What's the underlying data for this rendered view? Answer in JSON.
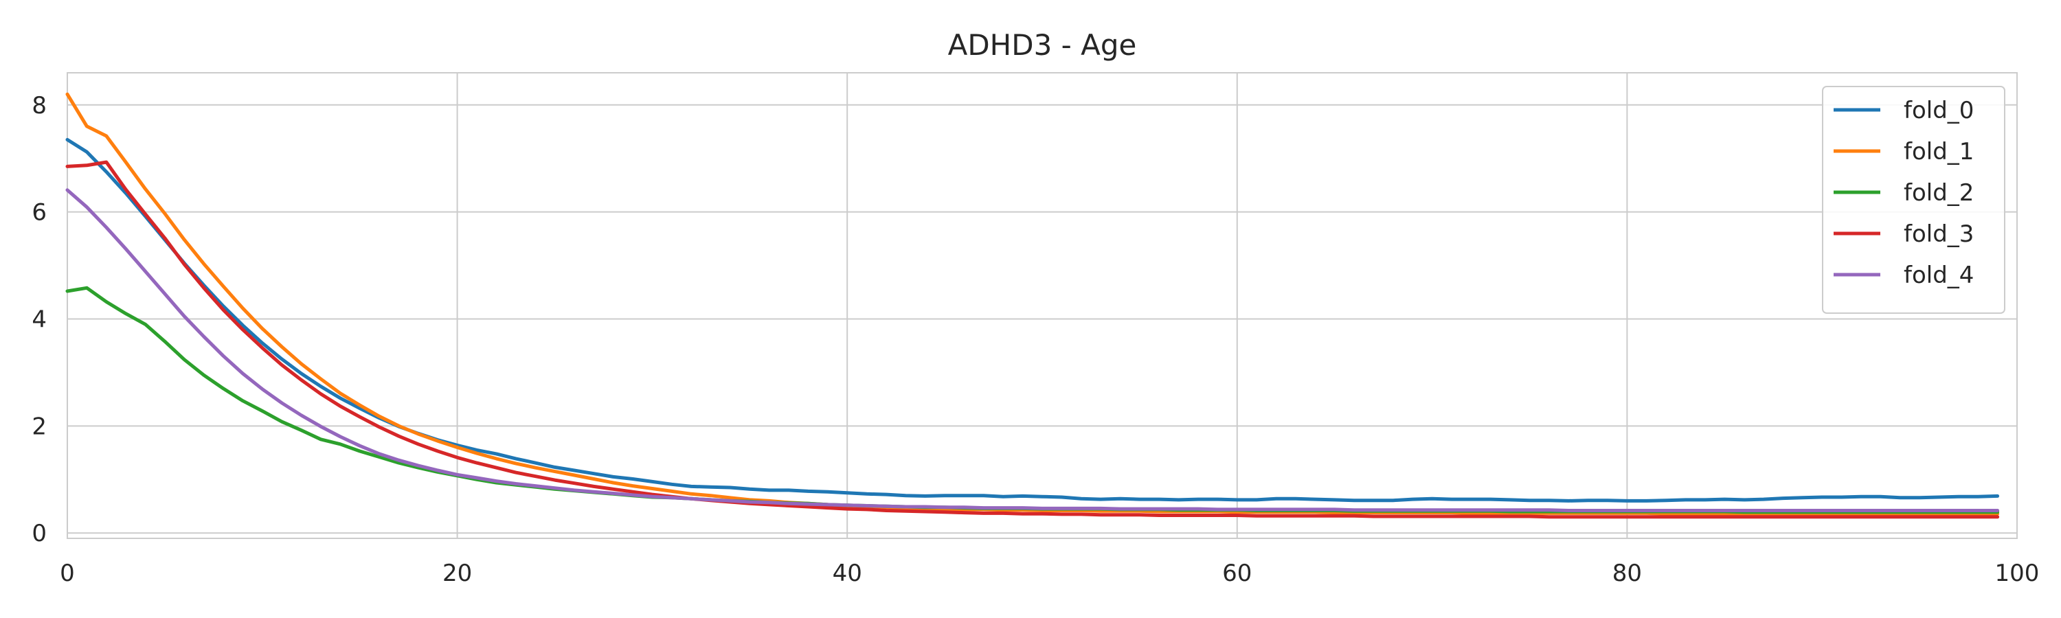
{
  "chart_data": {
    "type": "line",
    "title": "ADHD3 - Age",
    "xlabel": "",
    "ylabel": "",
    "xlim": [
      0,
      100
    ],
    "ylim": [
      -0.1,
      8.6
    ],
    "x_ticks": [
      0,
      20,
      40,
      60,
      80,
      100
    ],
    "y_ticks": [
      0,
      2,
      4,
      6,
      8
    ],
    "grid": true,
    "legend_position": "top-right",
    "colors": {
      "fold_0": "#1f77b4",
      "fold_1": "#ff7f0e",
      "fold_2": "#2ca02c",
      "fold_3": "#d62728",
      "fold_4": "#9467bd"
    },
    "series": [
      {
        "name": "fold_0",
        "x": [
          0,
          1,
          2,
          3,
          4,
          5,
          6,
          7,
          8,
          9,
          10,
          11,
          12,
          13,
          14,
          15,
          16,
          17,
          18,
          19,
          20,
          21,
          22,
          23,
          24,
          25,
          26,
          27,
          28,
          29,
          30,
          31,
          32,
          33,
          34,
          35,
          36,
          37,
          38,
          39,
          40,
          41,
          42,
          43,
          44,
          45,
          46,
          47,
          48,
          49,
          50,
          51,
          52,
          53,
          54,
          55,
          56,
          57,
          58,
          59,
          60,
          61,
          62,
          63,
          64,
          65,
          66,
          67,
          68,
          69,
          70,
          71,
          72,
          73,
          74,
          75,
          76,
          77,
          78,
          79,
          80,
          81,
          82,
          83,
          84,
          85,
          86,
          87,
          88,
          89,
          90,
          91,
          92,
          93,
          94,
          95,
          96,
          97,
          98,
          99
        ],
        "values": [
          7.35,
          7.12,
          6.75,
          6.35,
          5.92,
          5.48,
          5.04,
          4.63,
          4.24,
          3.88,
          3.55,
          3.25,
          2.98,
          2.74,
          2.52,
          2.33,
          2.15,
          1.99,
          1.86,
          1.74,
          1.64,
          1.55,
          1.48,
          1.39,
          1.31,
          1.23,
          1.17,
          1.11,
          1.05,
          1.01,
          0.96,
          0.91,
          0.87,
          0.86,
          0.85,
          0.82,
          0.8,
          0.8,
          0.78,
          0.77,
          0.75,
          0.73,
          0.72,
          0.7,
          0.69,
          0.7,
          0.7,
          0.7,
          0.68,
          0.69,
          0.68,
          0.67,
          0.64,
          0.63,
          0.64,
          0.63,
          0.63,
          0.62,
          0.63,
          0.63,
          0.62,
          0.62,
          0.64,
          0.64,
          0.63,
          0.62,
          0.61,
          0.61,
          0.61,
          0.63,
          0.64,
          0.63,
          0.63,
          0.63,
          0.62,
          0.61,
          0.61,
          0.6,
          0.61,
          0.61,
          0.6,
          0.6,
          0.61,
          0.62,
          0.62,
          0.63,
          0.62,
          0.63,
          0.65,
          0.66,
          0.67,
          0.67,
          0.68,
          0.68,
          0.66,
          0.66,
          0.67,
          0.68,
          0.68,
          0.69
        ]
      },
      {
        "name": "fold_1",
        "x": [
          0,
          1,
          2,
          3,
          4,
          5,
          6,
          7,
          8,
          9,
          10,
          11,
          12,
          13,
          14,
          15,
          16,
          17,
          18,
          19,
          20,
          21,
          22,
          23,
          24,
          25,
          26,
          27,
          28,
          29,
          30,
          31,
          32,
          33,
          34,
          35,
          36,
          37,
          38,
          39,
          40,
          41,
          42,
          43,
          44,
          45,
          46,
          47,
          48,
          49,
          50,
          51,
          52,
          53,
          54,
          55,
          56,
          57,
          58,
          59,
          60,
          61,
          62,
          63,
          64,
          65,
          66,
          67,
          68,
          69,
          70,
          71,
          72,
          73,
          74,
          75,
          76,
          77,
          78,
          79,
          80,
          81,
          82,
          83,
          84,
          85,
          86,
          87,
          88,
          89,
          90,
          91,
          92,
          93,
          94,
          95,
          96,
          97,
          98,
          99
        ],
        "values": [
          8.2,
          7.6,
          7.42,
          6.93,
          6.43,
          5.97,
          5.48,
          5.03,
          4.61,
          4.2,
          3.82,
          3.48,
          3.16,
          2.88,
          2.61,
          2.39,
          2.18,
          2.0,
          1.85,
          1.72,
          1.6,
          1.49,
          1.39,
          1.3,
          1.22,
          1.15,
          1.08,
          1.01,
          0.94,
          0.88,
          0.83,
          0.78,
          0.73,
          0.7,
          0.66,
          0.62,
          0.6,
          0.57,
          0.55,
          0.53,
          0.51,
          0.5,
          0.48,
          0.47,
          0.46,
          0.45,
          0.44,
          0.44,
          0.43,
          0.43,
          0.42,
          0.42,
          0.42,
          0.41,
          0.41,
          0.41,
          0.4,
          0.4,
          0.4,
          0.4,
          0.39,
          0.39,
          0.39,
          0.39,
          0.39,
          0.38,
          0.38,
          0.38,
          0.38,
          0.38,
          0.38,
          0.38,
          0.37,
          0.37,
          0.37,
          0.37,
          0.37,
          0.37,
          0.37,
          0.37,
          0.37,
          0.37,
          0.36,
          0.36,
          0.36,
          0.36,
          0.36,
          0.36,
          0.36,
          0.36,
          0.36,
          0.36,
          0.36,
          0.36,
          0.36,
          0.36,
          0.36,
          0.36,
          0.36,
          0.36
        ]
      },
      {
        "name": "fold_2",
        "x": [
          0,
          1,
          2,
          3,
          4,
          5,
          6,
          7,
          8,
          9,
          10,
          11,
          12,
          13,
          14,
          15,
          16,
          17,
          18,
          19,
          20,
          21,
          22,
          23,
          24,
          25,
          26,
          27,
          28,
          29,
          30,
          31,
          32,
          33,
          34,
          35,
          36,
          37,
          38,
          39,
          40,
          41,
          42,
          43,
          44,
          45,
          46,
          47,
          48,
          49,
          50,
          51,
          52,
          53,
          54,
          55,
          56,
          57,
          58,
          59,
          60,
          61,
          62,
          63,
          64,
          65,
          66,
          67,
          68,
          69,
          70,
          71,
          72,
          73,
          74,
          75,
          76,
          77,
          78,
          79,
          80,
          81,
          82,
          83,
          84,
          85,
          86,
          87,
          88,
          89,
          90,
          91,
          92,
          93,
          94,
          95,
          96,
          97,
          98,
          99
        ],
        "values": [
          4.52,
          4.58,
          4.32,
          4.1,
          3.9,
          3.58,
          3.24,
          2.95,
          2.7,
          2.47,
          2.28,
          2.08,
          1.92,
          1.75,
          1.66,
          1.53,
          1.42,
          1.31,
          1.22,
          1.14,
          1.07,
          1.0,
          0.94,
          0.9,
          0.86,
          0.82,
          0.79,
          0.76,
          0.73,
          0.7,
          0.67,
          0.66,
          0.64,
          0.62,
          0.6,
          0.59,
          0.57,
          0.56,
          0.55,
          0.53,
          0.52,
          0.51,
          0.5,
          0.49,
          0.48,
          0.48,
          0.47,
          0.46,
          0.46,
          0.46,
          0.45,
          0.45,
          0.45,
          0.45,
          0.44,
          0.44,
          0.44,
          0.43,
          0.43,
          0.43,
          0.43,
          0.42,
          0.42,
          0.42,
          0.42,
          0.42,
          0.41,
          0.41,
          0.41,
          0.41,
          0.41,
          0.41,
          0.41,
          0.41,
          0.4,
          0.4,
          0.4,
          0.4,
          0.4,
          0.4,
          0.4,
          0.4,
          0.4,
          0.4,
          0.4,
          0.4,
          0.39,
          0.39,
          0.39,
          0.39,
          0.39,
          0.39,
          0.39,
          0.39,
          0.39,
          0.39,
          0.39,
          0.39,
          0.39,
          0.39
        ]
      },
      {
        "name": "fold_3",
        "x": [
          0,
          1,
          2,
          3,
          4,
          5,
          6,
          7,
          8,
          9,
          10,
          11,
          12,
          13,
          14,
          15,
          16,
          17,
          18,
          19,
          20,
          21,
          22,
          23,
          24,
          25,
          26,
          27,
          28,
          29,
          30,
          31,
          32,
          33,
          34,
          35,
          36,
          37,
          38,
          39,
          40,
          41,
          42,
          43,
          44,
          45,
          46,
          47,
          48,
          49,
          50,
          51,
          52,
          53,
          54,
          55,
          56,
          57,
          58,
          59,
          60,
          61,
          62,
          63,
          64,
          65,
          66,
          67,
          68,
          69,
          70,
          71,
          72,
          73,
          74,
          75,
          76,
          77,
          78,
          79,
          80,
          81,
          82,
          83,
          84,
          85,
          86,
          87,
          88,
          89,
          90,
          91,
          92,
          93,
          94,
          95,
          96,
          97,
          98,
          99
        ],
        "values": [
          6.85,
          6.87,
          6.93,
          6.42,
          5.96,
          5.51,
          5.02,
          4.58,
          4.17,
          3.8,
          3.46,
          3.14,
          2.86,
          2.6,
          2.37,
          2.17,
          1.98,
          1.81,
          1.66,
          1.53,
          1.41,
          1.31,
          1.22,
          1.13,
          1.06,
          0.99,
          0.93,
          0.87,
          0.82,
          0.77,
          0.72,
          0.68,
          0.64,
          0.61,
          0.58,
          0.55,
          0.53,
          0.51,
          0.49,
          0.47,
          0.45,
          0.44,
          0.42,
          0.41,
          0.4,
          0.39,
          0.38,
          0.37,
          0.37,
          0.36,
          0.36,
          0.35,
          0.35,
          0.34,
          0.34,
          0.34,
          0.33,
          0.33,
          0.33,
          0.33,
          0.33,
          0.32,
          0.32,
          0.32,
          0.32,
          0.32,
          0.32,
          0.31,
          0.31,
          0.31,
          0.31,
          0.31,
          0.31,
          0.31,
          0.31,
          0.31,
          0.3,
          0.3,
          0.3,
          0.3,
          0.3,
          0.3,
          0.3,
          0.3,
          0.3,
          0.3,
          0.3,
          0.3,
          0.3,
          0.3,
          0.3,
          0.3,
          0.3,
          0.3,
          0.3,
          0.3,
          0.3,
          0.3,
          0.3,
          0.3
        ]
      },
      {
        "name": "fold_4",
        "x": [
          0,
          1,
          2,
          3,
          4,
          5,
          6,
          7,
          8,
          9,
          10,
          11,
          12,
          13,
          14,
          15,
          16,
          17,
          18,
          19,
          20,
          21,
          22,
          23,
          24,
          25,
          26,
          27,
          28,
          29,
          30,
          31,
          32,
          33,
          34,
          35,
          36,
          37,
          38,
          39,
          40,
          41,
          42,
          43,
          44,
          45,
          46,
          47,
          48,
          49,
          50,
          51,
          52,
          53,
          54,
          55,
          56,
          57,
          58,
          59,
          60,
          61,
          62,
          63,
          64,
          65,
          66,
          67,
          68,
          69,
          70,
          71,
          72,
          73,
          74,
          75,
          76,
          77,
          78,
          79,
          80,
          81,
          82,
          83,
          84,
          85,
          86,
          87,
          88,
          89,
          90,
          91,
          92,
          93,
          94,
          95,
          96,
          97,
          98,
          99
        ],
        "values": [
          6.41,
          6.09,
          5.71,
          5.31,
          4.89,
          4.47,
          4.05,
          3.67,
          3.31,
          2.98,
          2.69,
          2.43,
          2.2,
          1.99,
          1.8,
          1.63,
          1.48,
          1.36,
          1.26,
          1.17,
          1.09,
          1.03,
          0.97,
          0.92,
          0.88,
          0.84,
          0.8,
          0.77,
          0.74,
          0.71,
          0.68,
          0.66,
          0.64,
          0.62,
          0.6,
          0.58,
          0.57,
          0.55,
          0.54,
          0.53,
          0.52,
          0.51,
          0.5,
          0.49,
          0.49,
          0.48,
          0.48,
          0.47,
          0.47,
          0.47,
          0.46,
          0.46,
          0.46,
          0.46,
          0.45,
          0.45,
          0.45,
          0.45,
          0.45,
          0.44,
          0.44,
          0.44,
          0.44,
          0.44,
          0.44,
          0.44,
          0.43,
          0.43,
          0.43,
          0.43,
          0.43,
          0.43,
          0.43,
          0.43,
          0.43,
          0.43,
          0.43,
          0.42,
          0.42,
          0.42,
          0.42,
          0.42,
          0.42,
          0.42,
          0.42,
          0.42,
          0.42,
          0.42,
          0.42,
          0.42,
          0.42,
          0.42,
          0.42,
          0.42,
          0.42,
          0.42,
          0.42,
          0.42,
          0.42,
          0.42
        ]
      }
    ]
  }
}
